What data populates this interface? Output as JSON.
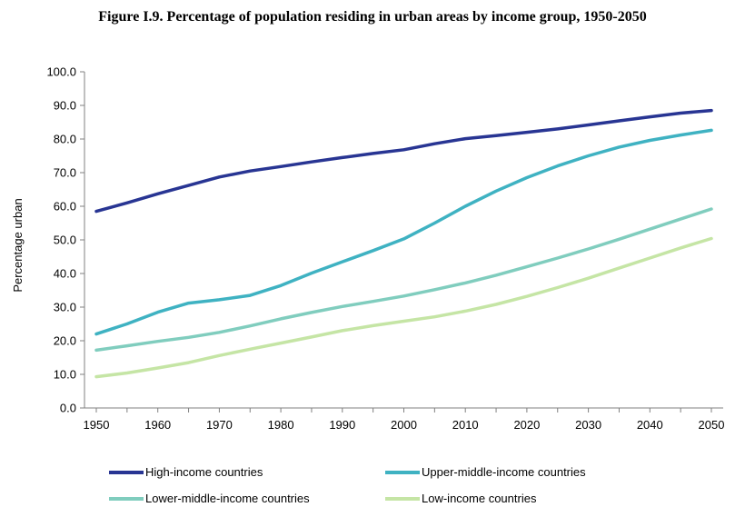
{
  "title": "Figure I.9. Percentage of population residing in urban areas by income group, 1950-2050",
  "chart_data": {
    "type": "line",
    "title": "Figure I.9. Percentage of population residing in urban areas by income group, 1950-2050",
    "xlabel": "",
    "ylabel": "Percentage urban",
    "xlim": [
      1950,
      2050
    ],
    "ylim": [
      0,
      100
    ],
    "x_ticks": [
      "1950",
      "1960",
      "1970",
      "1980",
      "1990",
      "2000",
      "2010",
      "2020",
      "2030",
      "2040",
      "2050"
    ],
    "y_ticks": [
      "0.0",
      "10.0",
      "20.0",
      "30.0",
      "40.0",
      "50.0",
      "60.0",
      "70.0",
      "80.0",
      "90.0",
      "100.0"
    ],
    "grid": false,
    "legend_position": "bottom",
    "x": [
      1950,
      1955,
      1960,
      1965,
      1970,
      1975,
      1980,
      1985,
      1990,
      1995,
      2000,
      2005,
      2010,
      2015,
      2020,
      2025,
      2030,
      2035,
      2040,
      2045,
      2050
    ],
    "series": [
      {
        "name": "High-income countries",
        "color": "#283593",
        "values": [
          58.5,
          61.0,
          63.7,
          66.2,
          68.7,
          70.5,
          71.8,
          73.2,
          74.5,
          75.7,
          76.8,
          78.6,
          80.1,
          81.0,
          82.0,
          83.0,
          84.2,
          85.4,
          86.6,
          87.7,
          88.5
        ]
      },
      {
        "name": "Upper-middle-income countries",
        "color": "#3fb2c2",
        "values": [
          22.0,
          25.0,
          28.5,
          31.2,
          32.2,
          33.5,
          36.4,
          40.1,
          43.5,
          46.8,
          50.3,
          55.0,
          60.0,
          64.5,
          68.5,
          72.0,
          75.0,
          77.6,
          79.6,
          81.2,
          82.6
        ]
      },
      {
        "name": "Lower-middle-income countries",
        "color": "#80cdbe",
        "values": [
          17.2,
          18.5,
          19.8,
          21.0,
          22.5,
          24.4,
          26.5,
          28.4,
          30.2,
          31.7,
          33.3,
          35.2,
          37.2,
          39.5,
          42.0,
          44.6,
          47.3,
          50.2,
          53.2,
          56.2,
          59.2
        ]
      },
      {
        "name": "Low-income countries",
        "color": "#c5e5a5",
        "values": [
          9.3,
          10.4,
          11.9,
          13.5,
          15.6,
          17.5,
          19.3,
          21.1,
          23.0,
          24.5,
          25.8,
          27.1,
          28.8,
          30.8,
          33.2,
          35.8,
          38.6,
          41.6,
          44.6,
          47.6,
          50.4
        ]
      }
    ]
  }
}
